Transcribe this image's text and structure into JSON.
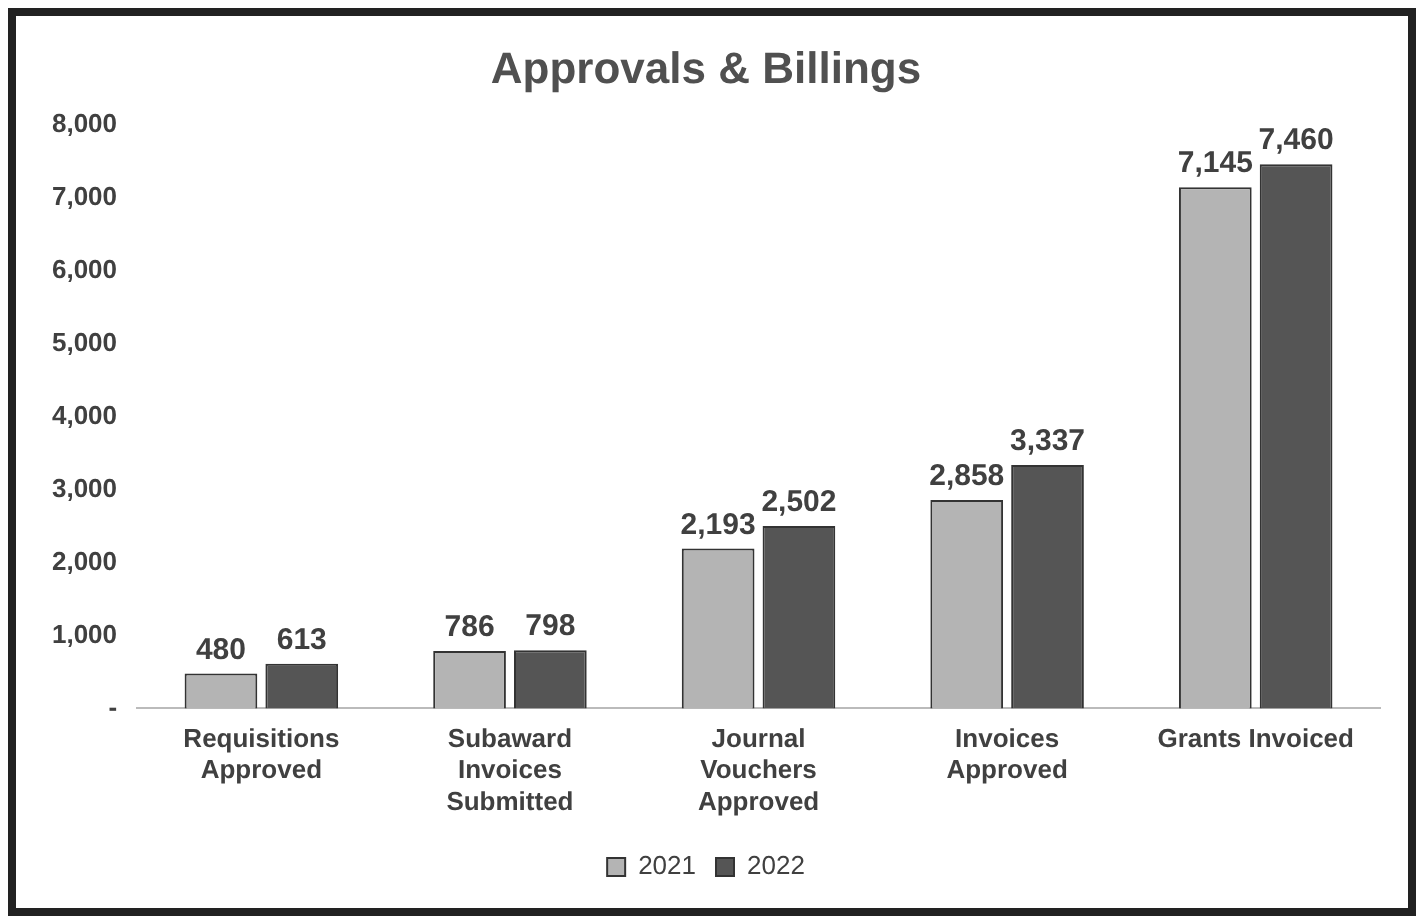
{
  "chart_data": {
    "type": "bar",
    "title": "Approvals & Billings",
    "categories": [
      "Requisitions Approved",
      "Subaward Invoices Submitted",
      "Journal Vouchers Approved",
      "Invoices Approved",
      "Grants Invoiced"
    ],
    "series": [
      {
        "name": "2021",
        "color": "#b4b4b4",
        "values": [
          480,
          786,
          2193,
          2858,
          7145
        ],
        "value_labels": [
          "480",
          "786",
          "2,193",
          "2,858",
          "7,145"
        ]
      },
      {
        "name": "2022",
        "color": "#555555",
        "values": [
          613,
          798,
          2502,
          3337,
          7460
        ],
        "value_labels": [
          "613",
          "798",
          "2,502",
          "3,337",
          "7,460"
        ]
      }
    ],
    "ylim": [
      0,
      8000
    ],
    "yticks": [
      {
        "value": 0,
        "label": "-"
      },
      {
        "value": 1000,
        "label": "1,000"
      },
      {
        "value": 2000,
        "label": "2,000"
      },
      {
        "value": 3000,
        "label": "3,000"
      },
      {
        "value": 4000,
        "label": "4,000"
      },
      {
        "value": 5000,
        "label": "5,000"
      },
      {
        "value": 6000,
        "label": "6,000"
      },
      {
        "value": 7000,
        "label": "7,000"
      },
      {
        "value": 8000,
        "label": "8,000"
      }
    ],
    "grid": false,
    "legend": "bottom"
  }
}
